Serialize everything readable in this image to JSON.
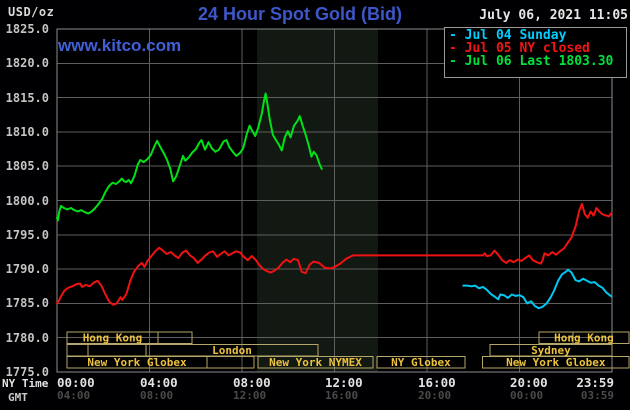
{
  "header": {
    "units": "USD/oz",
    "title": "24 Hour Spot Gold (Bid)",
    "datetime": "July 06, 2021 11:05",
    "watermark": "www.kitco.com"
  },
  "legend": [
    {
      "label": "- Jul 04 Sunday",
      "color": "#00ccff"
    },
    {
      "label": "- Jul 05 NY closed",
      "color": "#f31414"
    },
    {
      "label": "- Jul 06 Last 1803.30",
      "color": "#00e13c"
    }
  ],
  "axes": {
    "ny_label": "NY Time",
    "gmt_label": "GMT",
    "y_ticks": [
      "1825.0",
      "1820.0",
      "1815.0",
      "1810.0",
      "1805.0",
      "1800.0",
      "1795.0",
      "1790.0",
      "1785.0",
      "1780.0",
      "1775.0"
    ],
    "x_ny": [
      "00:00",
      "04:00",
      "08:00",
      "12:00",
      "16:00",
      "20:00",
      "23:59"
    ],
    "x_gmt": [
      "04:00",
      "08:00",
      "12:00",
      "16:00",
      "20:00",
      "00:00",
      "03:59"
    ]
  },
  "chart_data": {
    "type": "line",
    "title": "24 Hour Spot Gold (Bid)",
    "ylabel": "USD/oz",
    "ylim": [
      1775.0,
      1825.0
    ],
    "xlim_hours_ny": [
      0,
      24
    ],
    "grid": true,
    "highlight_band_hours": [
      8.65,
      13.88
    ],
    "series": [
      {
        "name": "Jul 04 Sunday",
        "color": "#00c8f2",
        "points": [
          [
            17.57,
            1787.6
          ],
          [
            17.75,
            1787.6
          ],
          [
            17.92,
            1787.5
          ],
          [
            18.08,
            1787.6
          ],
          [
            18.25,
            1787.2
          ],
          [
            18.42,
            1787.4
          ],
          [
            18.58,
            1787.0
          ],
          [
            18.75,
            1786.4
          ],
          [
            18.92,
            1786.0
          ],
          [
            19.08,
            1785.6
          ],
          [
            19.17,
            1786.3
          ],
          [
            19.33,
            1786.2
          ],
          [
            19.5,
            1785.8
          ],
          [
            19.67,
            1786.3
          ],
          [
            19.83,
            1786.1
          ],
          [
            20.0,
            1786.2
          ],
          [
            20.17,
            1785.9
          ],
          [
            20.33,
            1785.0
          ],
          [
            20.5,
            1785.3
          ],
          [
            20.67,
            1784.6
          ],
          [
            20.83,
            1784.3
          ],
          [
            21.0,
            1784.5
          ],
          [
            21.17,
            1785.0
          ],
          [
            21.33,
            1785.8
          ],
          [
            21.5,
            1786.9
          ],
          [
            21.67,
            1788.3
          ],
          [
            21.83,
            1789.2
          ],
          [
            22.0,
            1789.6
          ],
          [
            22.1,
            1789.9
          ],
          [
            22.25,
            1789.5
          ],
          [
            22.42,
            1788.4
          ],
          [
            22.58,
            1788.2
          ],
          [
            22.75,
            1788.6
          ],
          [
            22.92,
            1788.3
          ],
          [
            23.08,
            1788.0
          ],
          [
            23.25,
            1788.1
          ],
          [
            23.42,
            1787.6
          ],
          [
            23.58,
            1787.3
          ],
          [
            23.75,
            1786.6
          ],
          [
            23.98,
            1786.0
          ]
        ]
      },
      {
        "name": "Jul 05 NY closed",
        "color": "#f01212",
        "points": [
          [
            0.0,
            1785.0
          ],
          [
            0.08,
            1785.4
          ],
          [
            0.17,
            1786.0
          ],
          [
            0.33,
            1786.9
          ],
          [
            0.5,
            1787.3
          ],
          [
            0.67,
            1787.5
          ],
          [
            0.83,
            1787.8
          ],
          [
            1.0,
            1787.9
          ],
          [
            1.08,
            1787.4
          ],
          [
            1.25,
            1787.7
          ],
          [
            1.42,
            1787.5
          ],
          [
            1.58,
            1788.0
          ],
          [
            1.75,
            1788.3
          ],
          [
            1.92,
            1787.6
          ],
          [
            2.08,
            1786.4
          ],
          [
            2.25,
            1785.3
          ],
          [
            2.42,
            1784.8
          ],
          [
            2.58,
            1785.0
          ],
          [
            2.75,
            1785.9
          ],
          [
            2.83,
            1785.5
          ],
          [
            3.0,
            1786.4
          ],
          [
            3.17,
            1788.3
          ],
          [
            3.33,
            1789.6
          ],
          [
            3.5,
            1790.4
          ],
          [
            3.67,
            1790.9
          ],
          [
            3.78,
            1790.3
          ],
          [
            3.92,
            1791.2
          ],
          [
            4.08,
            1791.9
          ],
          [
            4.25,
            1792.6
          ],
          [
            4.42,
            1793.1
          ],
          [
            4.58,
            1792.7
          ],
          [
            4.75,
            1792.2
          ],
          [
            4.92,
            1792.5
          ],
          [
            5.08,
            1792.0
          ],
          [
            5.25,
            1791.6
          ],
          [
            5.42,
            1792.4
          ],
          [
            5.58,
            1792.7
          ],
          [
            5.75,
            1792.0
          ],
          [
            5.92,
            1791.6
          ],
          [
            6.08,
            1790.9
          ],
          [
            6.25,
            1791.4
          ],
          [
            6.42,
            1792.0
          ],
          [
            6.58,
            1792.4
          ],
          [
            6.75,
            1792.6
          ],
          [
            6.92,
            1791.8
          ],
          [
            7.08,
            1792.2
          ],
          [
            7.25,
            1792.6
          ],
          [
            7.42,
            1792.0
          ],
          [
            7.58,
            1792.3
          ],
          [
            7.75,
            1792.6
          ],
          [
            7.92,
            1792.4
          ],
          [
            8.08,
            1791.8
          ],
          [
            8.25,
            1791.3
          ],
          [
            8.42,
            1791.9
          ],
          [
            8.58,
            1791.4
          ],
          [
            8.75,
            1790.6
          ],
          [
            8.92,
            1790.0
          ],
          [
            9.08,
            1789.7
          ],
          [
            9.25,
            1789.5
          ],
          [
            9.42,
            1789.8
          ],
          [
            9.58,
            1790.2
          ],
          [
            9.75,
            1790.9
          ],
          [
            9.92,
            1791.4
          ],
          [
            10.08,
            1791.0
          ],
          [
            10.25,
            1791.5
          ],
          [
            10.42,
            1791.3
          ],
          [
            10.58,
            1789.6
          ],
          [
            10.75,
            1789.4
          ],
          [
            10.92,
            1790.6
          ],
          [
            11.08,
            1791.1
          ],
          [
            11.33,
            1790.9
          ],
          [
            11.58,
            1790.2
          ],
          [
            11.83,
            1790.1
          ],
          [
            12.0,
            1790.3
          ],
          [
            12.25,
            1790.8
          ],
          [
            12.5,
            1791.5
          ],
          [
            12.8,
            1792.0
          ],
          [
            18.42,
            1792.0
          ],
          [
            18.5,
            1792.3
          ],
          [
            18.58,
            1791.9
          ],
          [
            18.75,
            1792.0
          ],
          [
            18.92,
            1792.7
          ],
          [
            19.08,
            1792.1
          ],
          [
            19.25,
            1791.3
          ],
          [
            19.42,
            1790.9
          ],
          [
            19.58,
            1791.3
          ],
          [
            19.75,
            1791.0
          ],
          [
            19.92,
            1791.4
          ],
          [
            20.08,
            1791.2
          ],
          [
            20.25,
            1791.6
          ],
          [
            20.42,
            1792.0
          ],
          [
            20.58,
            1791.3
          ],
          [
            20.75,
            1791.0
          ],
          [
            20.92,
            1790.8
          ],
          [
            21.0,
            1791.3
          ],
          [
            21.08,
            1792.3
          ],
          [
            21.25,
            1792.0
          ],
          [
            21.42,
            1792.5
          ],
          [
            21.58,
            1792.1
          ],
          [
            21.75,
            1792.6
          ],
          [
            21.92,
            1793.0
          ],
          [
            22.08,
            1793.8
          ],
          [
            22.25,
            1794.6
          ],
          [
            22.42,
            1796.2
          ],
          [
            22.58,
            1798.5
          ],
          [
            22.7,
            1799.5
          ],
          [
            22.83,
            1798.0
          ],
          [
            22.95,
            1797.5
          ],
          [
            23.08,
            1798.4
          ],
          [
            23.2,
            1797.8
          ],
          [
            23.33,
            1798.9
          ],
          [
            23.45,
            1798.4
          ],
          [
            23.58,
            1798.0
          ],
          [
            23.75,
            1797.8
          ],
          [
            23.88,
            1797.7
          ],
          [
            23.98,
            1798.2
          ]
        ]
      },
      {
        "name": "Jul 06 Last 1803.30",
        "color": "#00e118",
        "points": [
          [
            0.0,
            1797.5
          ],
          [
            0.04,
            1797.1
          ],
          [
            0.1,
            1798.4
          ],
          [
            0.17,
            1799.2
          ],
          [
            0.3,
            1798.9
          ],
          [
            0.45,
            1798.7
          ],
          [
            0.6,
            1798.9
          ],
          [
            0.75,
            1798.6
          ],
          [
            0.9,
            1798.4
          ],
          [
            1.05,
            1798.6
          ],
          [
            1.2,
            1798.3
          ],
          [
            1.35,
            1798.1
          ],
          [
            1.5,
            1798.4
          ],
          [
            1.65,
            1798.9
          ],
          [
            1.8,
            1799.5
          ],
          [
            1.95,
            1800.2
          ],
          [
            2.1,
            1801.3
          ],
          [
            2.25,
            1802.1
          ],
          [
            2.4,
            1802.6
          ],
          [
            2.55,
            1802.4
          ],
          [
            2.7,
            1802.8
          ],
          [
            2.8,
            1803.2
          ],
          [
            2.9,
            1802.8
          ],
          [
            3.0,
            1802.7
          ],
          [
            3.1,
            1803.0
          ],
          [
            3.2,
            1802.5
          ],
          [
            3.35,
            1803.6
          ],
          [
            3.5,
            1805.3
          ],
          [
            3.6,
            1805.9
          ],
          [
            3.75,
            1805.6
          ],
          [
            3.9,
            1806.0
          ],
          [
            4.05,
            1806.6
          ],
          [
            4.2,
            1807.8
          ],
          [
            4.33,
            1808.7
          ],
          [
            4.45,
            1807.9
          ],
          [
            4.6,
            1807.0
          ],
          [
            4.75,
            1806.0
          ],
          [
            4.9,
            1804.6
          ],
          [
            5.02,
            1802.8
          ],
          [
            5.15,
            1803.5
          ],
          [
            5.3,
            1805.0
          ],
          [
            5.45,
            1806.5
          ],
          [
            5.55,
            1805.8
          ],
          [
            5.7,
            1806.3
          ],
          [
            5.85,
            1807.0
          ],
          [
            6.0,
            1807.5
          ],
          [
            6.15,
            1808.4
          ],
          [
            6.25,
            1808.8
          ],
          [
            6.4,
            1807.4
          ],
          [
            6.55,
            1808.5
          ],
          [
            6.7,
            1807.6
          ],
          [
            6.85,
            1807.1
          ],
          [
            7.0,
            1807.4
          ],
          [
            7.2,
            1808.6
          ],
          [
            7.33,
            1808.8
          ],
          [
            7.45,
            1807.8
          ],
          [
            7.6,
            1807.1
          ],
          [
            7.75,
            1806.5
          ],
          [
            7.9,
            1806.9
          ],
          [
            8.05,
            1807.6
          ],
          [
            8.2,
            1809.6
          ],
          [
            8.33,
            1810.9
          ],
          [
            8.45,
            1810.1
          ],
          [
            8.57,
            1809.4
          ],
          [
            8.7,
            1810.6
          ],
          [
            8.85,
            1812.6
          ],
          [
            8.95,
            1814.5
          ],
          [
            9.02,
            1815.6
          ],
          [
            9.1,
            1814.1
          ],
          [
            9.2,
            1811.8
          ],
          [
            9.33,
            1809.6
          ],
          [
            9.45,
            1808.9
          ],
          [
            9.6,
            1808.1
          ],
          [
            9.72,
            1807.3
          ],
          [
            9.85,
            1809.2
          ],
          [
            9.98,
            1810.1
          ],
          [
            10.1,
            1809.2
          ],
          [
            10.25,
            1810.9
          ],
          [
            10.4,
            1811.6
          ],
          [
            10.5,
            1812.3
          ],
          [
            10.62,
            1810.9
          ],
          [
            10.75,
            1809.6
          ],
          [
            10.88,
            1808.1
          ],
          [
            11.0,
            1806.4
          ],
          [
            11.1,
            1807.1
          ],
          [
            11.22,
            1806.6
          ],
          [
            11.35,
            1805.3
          ],
          [
            11.45,
            1804.6
          ]
        ]
      }
    ]
  },
  "sessions": {
    "rows": [
      [
        {
          "label": "Hong Kong",
          "t0": 0.43,
          "t1": 4.37
        },
        {
          "label": "",
          "t0": 4.37,
          "t1": 5.84
        },
        {
          "label": "Hong Kong",
          "t0": 20.84,
          "t1": 24.73,
          "divider": 22.32
        }
      ],
      [
        {
          "label": "",
          "t0": 0.43,
          "t1": 1.34
        },
        {
          "label": "",
          "t0": 1.34,
          "t1": 3.85
        },
        {
          "label": "London",
          "t0": 3.85,
          "t1": 11.29
        },
        {
          "label": "Sydney",
          "t0": 18.72,
          "t1": 24.0
        }
      ],
      [
        {
          "label": "New York Globex",
          "t0": 0.43,
          "t1": 6.49
        },
        {
          "label": "",
          "t0": 6.49,
          "t1": 8.52
        },
        {
          "label": "New York NYMEX",
          "t0": 8.69,
          "t1": 13.67
        },
        {
          "label": "NY Globex",
          "t0": 13.84,
          "t1": 17.64
        },
        {
          "label": "New York Globex",
          "t0": 18.41,
          "t1": 24.73
        }
      ]
    ],
    "box_color": "#b5a76a",
    "text_color": "#ecc23f"
  },
  "style": {
    "grid_color": "#5e5e5e",
    "border_color": "#8d8d8d",
    "band_color": "#121812",
    "plot_bg": "#000000"
  }
}
